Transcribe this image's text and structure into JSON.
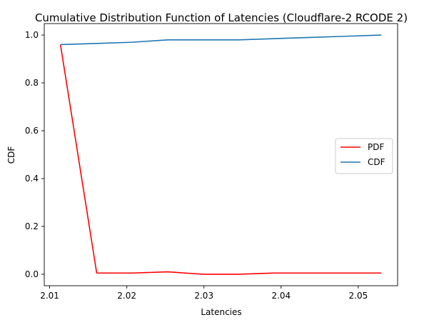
{
  "chart_data": {
    "type": "line",
    "title": "Cumulative Distribution Function of Latencies (Cloudflare-2 RCODE 2)",
    "xlabel": "Latencies",
    "ylabel": "CDF",
    "xlim": [
      2.0093,
      2.0551
    ],
    "ylim": [
      -0.048,
      1.048
    ],
    "x_ticks": [
      2.01,
      2.02,
      2.03,
      2.04,
      2.05
    ],
    "x_tick_labels": [
      "2.01",
      "2.02",
      "2.03",
      "2.04",
      "2.05"
    ],
    "y_ticks": [
      0.0,
      0.2,
      0.4,
      0.6,
      0.8,
      1.0
    ],
    "y_tick_labels": [
      "0.0",
      "0.2",
      "0.4",
      "0.6",
      "0.8",
      "1.0"
    ],
    "grid": false,
    "legend_position": "center-right",
    "series": [
      {
        "name": "PDF",
        "color": "#ff0000",
        "x": [
          2.0114,
          2.0161,
          2.0207,
          2.0253,
          2.0299,
          2.0345,
          2.0391,
          2.0437,
          2.0484,
          2.053
        ],
        "y": [
          0.96,
          0.005,
          0.005,
          0.01,
          0.0,
          0.0,
          0.005,
          0.005,
          0.005,
          0.005
        ]
      },
      {
        "name": "CDF",
        "color": "#1f77b4",
        "x": [
          2.0114,
          2.0161,
          2.0207,
          2.0253,
          2.0299,
          2.0345,
          2.0391,
          2.0437,
          2.0484,
          2.053
        ],
        "y": [
          0.96,
          0.965,
          0.97,
          0.98,
          0.98,
          0.98,
          0.985,
          0.99,
          0.995,
          1.0
        ]
      }
    ]
  }
}
